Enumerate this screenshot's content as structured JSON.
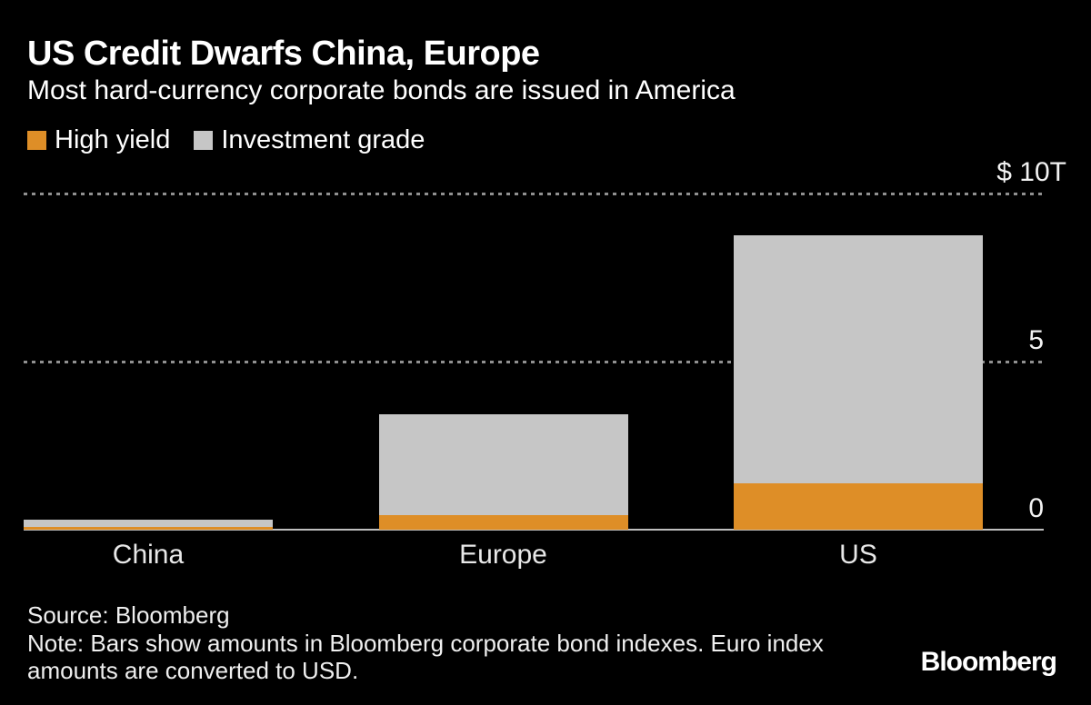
{
  "chart_data": {
    "type": "bar",
    "stacked": true,
    "title": "US Credit Dwarfs China, Europe",
    "subtitle": "Most hard-currency corporate bonds are issued in America",
    "unit": "USD trillions",
    "categories": [
      "China",
      "Europe",
      "US"
    ],
    "series": [
      {
        "name": "High yield",
        "color": "#DE8E27",
        "values": [
          0.09,
          0.43,
          1.38
        ]
      },
      {
        "name": "Investment grade",
        "color": "#C6C6C6",
        "values": [
          0.2,
          3.0,
          7.38
        ]
      }
    ],
    "totals": [
      0.29,
      3.43,
      8.76
    ],
    "ylim": [
      0,
      10
    ],
    "yticks": [
      {
        "value": 10,
        "label": "$ 10T"
      },
      {
        "value": 5,
        "label": "5"
      },
      {
        "value": 0,
        "label": "0"
      }
    ],
    "grid": "horizontal-dotted",
    "legend_position": "top-left"
  },
  "footer": {
    "source": "Source: Bloomberg",
    "note_lines": [
      "Note: Bars show amounts in Bloomberg corporate bond indexes. Euro index",
      "amounts are converted to USD."
    ],
    "brand": "Bloomberg"
  },
  "colors": {
    "background": "#000000",
    "title_text": "#FFFFFF",
    "high_yield": "#DE8E27",
    "investment_grade": "#C6C6C6",
    "axis_line": "#BFBFBF",
    "gridline": "#909090",
    "tick_text": "#F2F2F2",
    "category_text": "#E8E8E8",
    "footer_text": "#EFEFEF"
  }
}
